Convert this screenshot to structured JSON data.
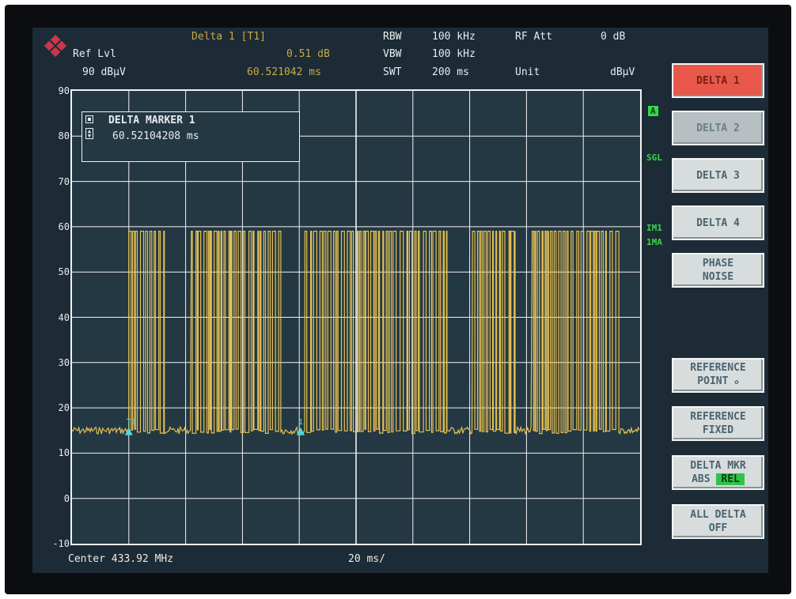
{
  "header": {
    "logo": "rohde-schwarz-logo",
    "ref_lvl_label": "Ref Lvl",
    "ref_lvl_value": "90 dBµV",
    "marker_title": "Delta 1 [T1]",
    "marker_level": "0.51 dB",
    "marker_time": "60.521042 ms",
    "rbw_label": "RBW",
    "rbw_value": "100 kHz",
    "vbw_label": "VBW",
    "vbw_value": "100 kHz",
    "swt_label": "SWT",
    "swt_value": "200 ms",
    "rfatt_label": "RF Att",
    "rfatt_value": "0 dB",
    "unit_label": "Unit",
    "unit_value": "dBµV"
  },
  "marker_box": {
    "title": "DELTA MARKER 1",
    "value": "60.52104208 ms"
  },
  "side_labels": {
    "a": "A",
    "sgl": "SGL",
    "im1": "IM1",
    "ima": "1MA"
  },
  "footer": {
    "center": "Center 433.92 MHz",
    "span": "20 ms/"
  },
  "softkeys": {
    "delta1": "DELTA 1",
    "delta2": "DELTA 2",
    "delta3": "DELTA 3",
    "delta4": "DELTA 4",
    "phase_noise_1": "PHASE",
    "phase_noise_2": "NOISE",
    "ref_point_1": "REFERENCE",
    "ref_point_2": "POINT",
    "ref_fixed_1": "REFERENCE",
    "ref_fixed_2": "FIXED",
    "delta_mkr_1": "DELTA MKR",
    "delta_mkr_abs": "ABS",
    "delta_mkr_rel": "REL",
    "all_delta_1": "ALL DELTA",
    "all_delta_2": "OFF"
  },
  "colors": {
    "trace": "#e6c154",
    "grid": "#f2f2f2",
    "plot_bg": "#243843",
    "active_key": "#e8584a",
    "status_green": "#34d84a",
    "marker": "#4fd8d8"
  },
  "chart_data": {
    "type": "line",
    "title": "",
    "xlabel": "",
    "ylabel": "",
    "x_unit": "ms",
    "xlim": [
      0,
      200
    ],
    "ylim": [
      -10,
      90
    ],
    "yticks": [
      "90",
      "80",
      "70",
      "60",
      "50",
      "40",
      "30",
      "20",
      "10",
      "0",
      "-10"
    ],
    "grid": true,
    "series": [
      {
        "noise_floor_dbuv": 15,
        "high_level_dbuv": 59,
        "bursts_ms": [
          [
            20,
            32.5
          ],
          [
            42,
            73.5
          ],
          [
            82,
            132
          ],
          [
            141,
            156
          ],
          [
            162,
            192.5
          ]
        ]
      }
    ],
    "markers": [
      {
        "label": "T1",
        "x_ms": 20,
        "y_dbuv": 15
      },
      {
        "label": "1",
        "x_ms": 80.5,
        "y_dbuv": 15
      }
    ]
  }
}
